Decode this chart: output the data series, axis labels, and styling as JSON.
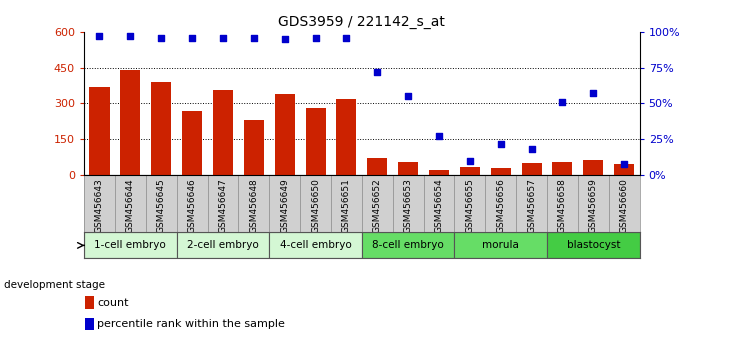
{
  "title": "GDS3959 / 221142_s_at",
  "samples": [
    "GSM456643",
    "GSM456644",
    "GSM456645",
    "GSM456646",
    "GSM456647",
    "GSM456648",
    "GSM456649",
    "GSM456650",
    "GSM456651",
    "GSM456652",
    "GSM456653",
    "GSM456654",
    "GSM456655",
    "GSM456656",
    "GSM456657",
    "GSM456658",
    "GSM456659",
    "GSM456660"
  ],
  "counts": [
    370,
    440,
    390,
    270,
    355,
    230,
    340,
    280,
    320,
    70,
    55,
    20,
    35,
    30,
    50,
    55,
    65,
    45
  ],
  "percentiles": [
    97,
    97,
    96,
    96,
    96,
    96,
    95,
    96,
    96,
    72,
    55,
    27,
    10,
    22,
    18,
    51,
    57,
    8
  ],
  "stages": [
    {
      "label": "1-cell embryo",
      "start": 0,
      "end": 3,
      "color": "#d4f7d4"
    },
    {
      "label": "2-cell embryo",
      "start": 3,
      "end": 6,
      "color": "#d4f7d4"
    },
    {
      "label": "4-cell embryo",
      "start": 6,
      "end": 9,
      "color": "#d4f7d4"
    },
    {
      "label": "8-cell embryo",
      "start": 9,
      "end": 12,
      "color": "#66dd66"
    },
    {
      "label": "morula",
      "start": 12,
      "end": 15,
      "color": "#66dd66"
    },
    {
      "label": "blastocyst",
      "start": 15,
      "end": 18,
      "color": "#44cc44"
    }
  ],
  "bar_color": "#cc2200",
  "dot_color": "#0000cc",
  "ylim_left": [
    0,
    600
  ],
  "ylim_right": [
    0,
    100
  ],
  "yticks_left": [
    0,
    150,
    300,
    450,
    600
  ],
  "yticks_right": [
    0,
    25,
    50,
    75,
    100
  ],
  "yticklabels_left": [
    "0",
    "150",
    "300",
    "450",
    "600"
  ],
  "yticklabels_right": [
    "0%",
    "25%",
    "50%",
    "75%",
    "100%"
  ],
  "stage_label_prefix": "development stage",
  "legend_count_label": "count",
  "legend_pct_label": "percentile rank within the sample",
  "sample_bg": "#d0d0d0",
  "plot_bg": "#ffffff",
  "fig_bg": "#ffffff",
  "grid_yticks": [
    150,
    300,
    450
  ]
}
